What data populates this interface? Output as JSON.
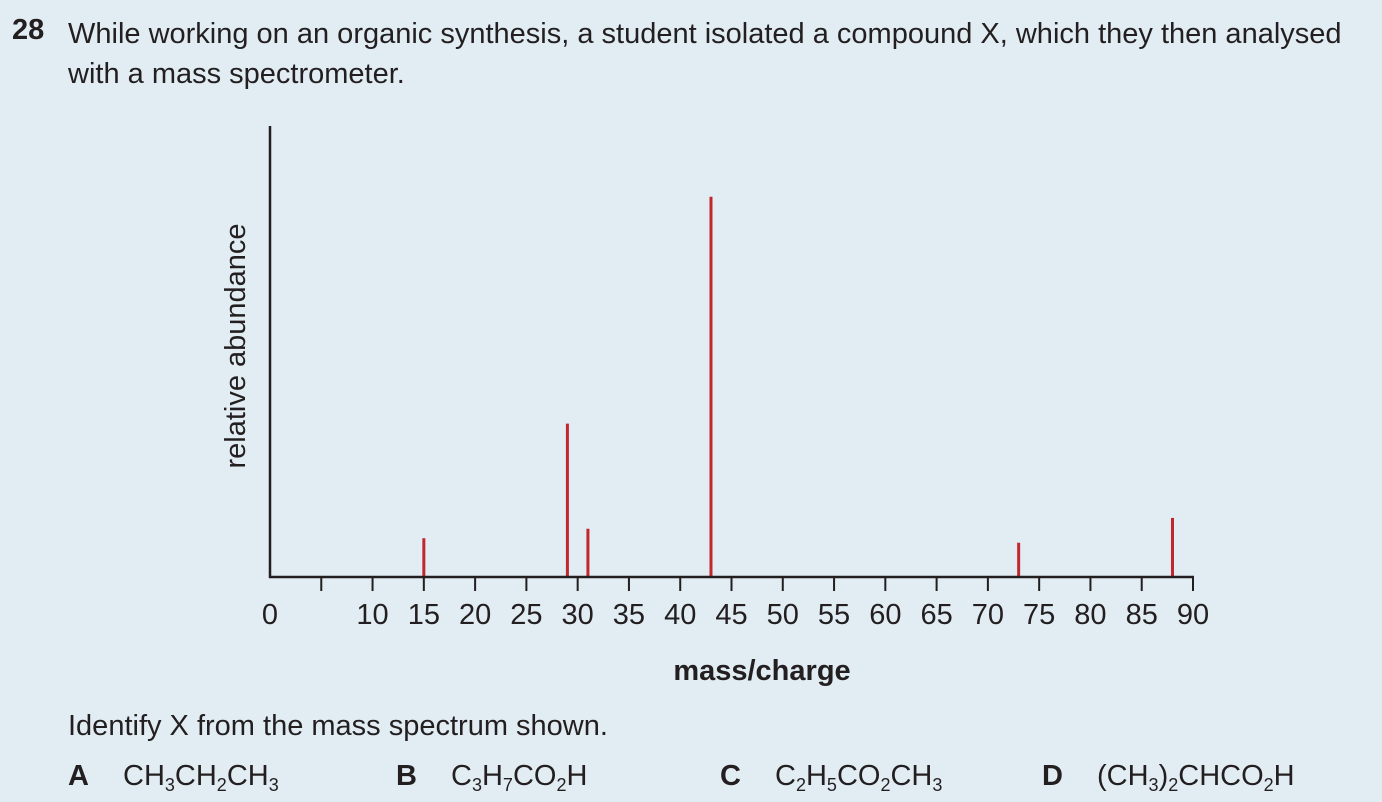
{
  "question": {
    "number": "28",
    "text": "While working on an organic synthesis, a student isolated a compound X, which they then analysed with a mass spectrometer.",
    "prompt": "Identify X from the mass spectrum shown."
  },
  "options": [
    {
      "letter": "A",
      "parts": [
        [
          "CH",
          ""
        ],
        [
          "",
          "3"
        ],
        [
          "CH",
          ""
        ],
        [
          "",
          "2"
        ],
        [
          "CH",
          ""
        ],
        [
          "",
          "3"
        ]
      ]
    },
    {
      "letter": "B",
      "parts": [
        [
          "C",
          ""
        ],
        [
          "",
          "3"
        ],
        [
          "H",
          ""
        ],
        [
          "",
          "7"
        ],
        [
          "CO",
          ""
        ],
        [
          "",
          "2"
        ],
        [
          "H",
          ""
        ]
      ]
    },
    {
      "letter": "C",
      "parts": [
        [
          "C",
          ""
        ],
        [
          "",
          "2"
        ],
        [
          "H",
          ""
        ],
        [
          "",
          "5"
        ],
        [
          "CO",
          ""
        ],
        [
          "",
          "2"
        ],
        [
          "CH",
          ""
        ],
        [
          "",
          "3"
        ]
      ]
    },
    {
      "letter": "D",
      "parts": [
        [
          "(CH",
          ""
        ],
        [
          "",
          "3"
        ],
        [
          ")",
          ""
        ],
        [
          "",
          "2"
        ],
        [
          "CHCO",
          ""
        ],
        [
          "",
          "2"
        ],
        [
          "H",
          ""
        ]
      ]
    }
  ],
  "chart_data": {
    "type": "bar",
    "xlabel": "mass/charge",
    "ylabel": "relative abundance",
    "xlim": [
      0,
      90
    ],
    "xticks": [
      0,
      10,
      15,
      20,
      25,
      30,
      35,
      40,
      45,
      50,
      55,
      60,
      65,
      70,
      75,
      80,
      85,
      90
    ],
    "peaks": [
      {
        "x": 15,
        "y": 8.6
      },
      {
        "x": 29,
        "y": 34
      },
      {
        "x": 31,
        "y": 10.7
      },
      {
        "x": 43,
        "y": 84.3
      },
      {
        "x": 73,
        "y": 7.6
      },
      {
        "x": 88,
        "y": 13.1
      }
    ],
    "ylim": [
      0,
      100
    ],
    "bar_color": "#c1272d",
    "axis_color": "#231f20"
  }
}
